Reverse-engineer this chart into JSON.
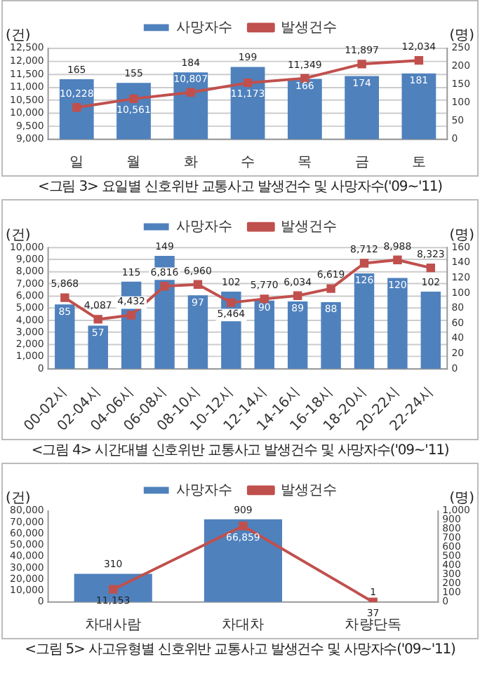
{
  "chart_data": [
    {
      "type": "bar",
      "title": "<그림 3> 요일별 신호위반 교통사고 발생건수 및 사망자수('09~'11)",
      "ylabel": "(건)",
      "y2label": "(명)",
      "categories": [
        "일",
        "월",
        "화",
        "수",
        "목",
        "금",
        "토"
      ],
      "series": [
        {
          "name": "사망자수",
          "type": "bar",
          "axis": "y2",
          "color": "#4f81bd",
          "values": [
            165,
            155,
            184,
            199,
            166,
            174,
            181
          ]
        },
        {
          "name": "발생건수",
          "type": "line",
          "color": "#c0504d",
          "values": [
            10228,
            10561,
            10807,
            11173,
            11349,
            11897,
            12034
          ],
          "value_labels": [
            "10,228",
            "10,561",
            "10,807",
            "11,173",
            "11,349",
            "11,897",
            "12,034"
          ]
        }
      ],
      "ylim": [
        9000,
        12500
      ],
      "yticks": [
        {
          "value": 9000,
          "label": "9,000"
        },
        {
          "value": 9500,
          "label": "9,500"
        },
        {
          "value": 10000,
          "label": "10,000"
        },
        {
          "value": 10500,
          "label": "10,500"
        },
        {
          "value": 11000,
          "label": "11,000"
        },
        {
          "value": 11500,
          "label": "11,500"
        },
        {
          "value": 12000,
          "label": "12,000"
        },
        {
          "value": 12500,
          "label": "12,500"
        }
      ],
      "y2lim": [
        0,
        250
      ],
      "y2ticks": [
        0,
        50,
        100,
        150,
        200,
        250
      ],
      "legend": "top",
      "grid": "y",
      "marker": "square",
      "data_labels": true
    },
    {
      "type": "bar",
      "title": "<그림 4> 시간대별 신호위반 교통사고 발생건수 및 사망자수('09~'11)",
      "ylabel": "(건)",
      "y2label": "(명)",
      "categories": [
        "00-02시",
        "02-04시",
        "04-06시",
        "06-08시",
        "08-10시",
        "10-12시",
        "12-14시",
        "14-16시",
        "16-18시",
        "18-20시",
        "20-22시",
        "22-24시"
      ],
      "series": [
        {
          "name": "사망자수",
          "type": "bar",
          "axis": "y2",
          "color": "#4f81bd",
          "values": [
            85,
            57,
            115,
            149,
            97,
            102,
            90,
            89,
            88,
            126,
            120,
            102
          ]
        },
        {
          "name": "발생건수",
          "type": "line",
          "color": "#c0504d",
          "values": [
            5868,
            4087,
            4432,
            6816,
            6960,
            5464,
            5770,
            6034,
            6619,
            8712,
            8988,
            8323
          ],
          "value_labels": [
            "5,868",
            "4,087",
            "4,432",
            "6,816",
            "6,960",
            "5,464",
            "5,770",
            "6,034",
            "6,619",
            "8,712",
            "8,988",
            "8,323"
          ]
        }
      ],
      "ylim": [
        0,
        10000
      ],
      "yticks": [
        0,
        {
          "value": 1000,
          "label": "1,000"
        },
        {
          "value": 2000,
          "label": "2,000"
        },
        {
          "value": 3000,
          "label": "3,000"
        },
        {
          "value": 4000,
          "label": "4,000"
        },
        {
          "value": 5000,
          "label": "5,000"
        },
        {
          "value": 6000,
          "label": "6,000"
        },
        {
          "value": 7000,
          "label": "7,000"
        },
        {
          "value": 8000,
          "label": "8,000"
        },
        {
          "value": 9000,
          "label": "9,000"
        },
        {
          "value": 10000,
          "label": "10,000"
        }
      ],
      "y2lim": [
        0,
        160
      ],
      "y2ticks": [
        0,
        20,
        40,
        60,
        80,
        100,
        120,
        140,
        160
      ],
      "legend": "top",
      "grid": "y",
      "marker": "square",
      "data_labels": true
    },
    {
      "type": "bar",
      "title": "<그림 5> 사고유형별 신호위반 교통사고 발생건수 및 사망자수('09~'11)",
      "ylabel": "(건)",
      "y2label": "(명)",
      "categories": [
        "차대사람",
        "차대차",
        "차량단독"
      ],
      "series": [
        {
          "name": "사망자수",
          "type": "bar",
          "axis": "y2",
          "color": "#4f81bd",
          "values": [
            310,
            909,
            1
          ]
        },
        {
          "name": "발생건수",
          "type": "line",
          "color": "#c0504d",
          "values": [
            11153,
            66859,
            37
          ],
          "value_labels": [
            "11,153",
            "66,859",
            "37"
          ]
        }
      ],
      "ylim": [
        0,
        80000
      ],
      "yticks": [
        0,
        {
          "value": 10000,
          "label": "10,000"
        },
        {
          "value": 20000,
          "label": "20,000"
        },
        {
          "value": 30000,
          "label": "30,000"
        },
        {
          "value": 40000,
          "label": "40,000"
        },
        {
          "value": 50000,
          "label": "50,000"
        },
        {
          "value": 60000,
          "label": "60,000"
        },
        {
          "value": 70000,
          "label": "70,000"
        },
        {
          "value": 80000,
          "label": "80,000"
        }
      ],
      "y2lim": [
        0,
        1000
      ],
      "y2ticks": [
        0,
        100,
        200,
        300,
        400,
        500,
        600,
        700,
        800,
        900,
        {
          "value": 1000,
          "label": "1,000"
        }
      ],
      "legend": "top",
      "marker": "square",
      "data_labels": true
    }
  ]
}
